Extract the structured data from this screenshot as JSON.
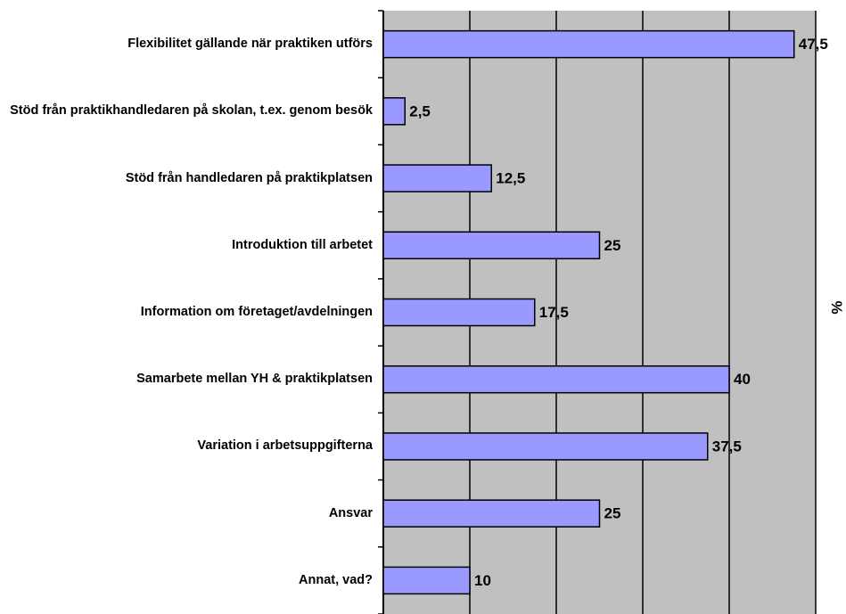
{
  "chart_data": {
    "type": "bar",
    "orientation": "horizontal",
    "categories": [
      "Flexibilitet gällande när praktiken utförs",
      "Stöd från praktikhandledaren på skolan, t.ex. genom besök",
      "Stöd från handledaren på praktikplatsen",
      "Introduktion till arbetet",
      "Information om företaget/avdelningen",
      "Samarbete mellan YH & praktikplatsen",
      "Variation i arbetsuppgifterna",
      "Ansvar",
      "Annat, vad?"
    ],
    "values": [
      47.5,
      2.5,
      12.5,
      25,
      17.5,
      40,
      37.5,
      25,
      10
    ],
    "value_labels": [
      "47,5",
      "2,5",
      "12,5",
      "25",
      "17,5",
      "40",
      "37,5",
      "25",
      "10"
    ],
    "color": "#9999ff",
    "xlim": [
      0,
      50
    ],
    "xticks": [
      0,
      10,
      20,
      30,
      40,
      50
    ],
    "x_label": "%",
    "grid": true
  }
}
